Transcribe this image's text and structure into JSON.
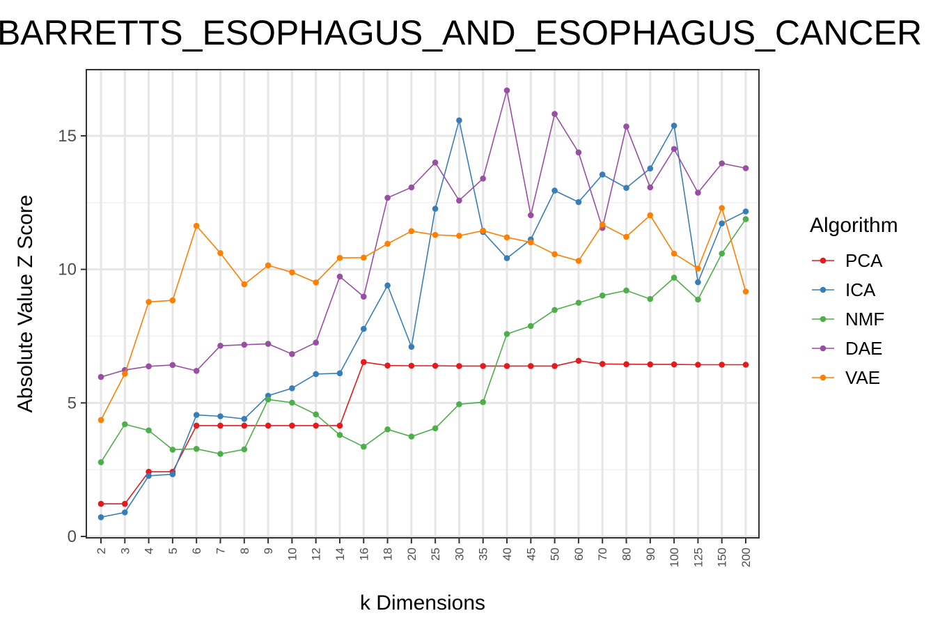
{
  "chart_data": {
    "type": "line",
    "title": "BARRETTS_ESOPHAGUS_AND_ESOPHAGUS_CANCER",
    "xlabel": "k Dimensions",
    "ylabel": "Absolute Value Z Score",
    "categories": [
      "2",
      "3",
      "4",
      "5",
      "6",
      "7",
      "8",
      "9",
      "10",
      "12",
      "14",
      "16",
      "18",
      "20",
      "25",
      "30",
      "35",
      "40",
      "45",
      "50",
      "60",
      "70",
      "80",
      "90",
      "100",
      "125",
      "150",
      "200"
    ],
    "ylim": [
      0,
      17.5
    ],
    "yticks": [
      0,
      5,
      10,
      15
    ],
    "ytick_labels": [
      "0",
      "5",
      "10",
      "15"
    ],
    "grid": true,
    "legend_title": "Algorithm",
    "legend_position": "right",
    "series": [
      {
        "name": "PCA",
        "color": "#E41A1C",
        "values": [
          1.22,
          1.22,
          2.42,
          2.42,
          4.15,
          4.15,
          4.15,
          4.15,
          4.15,
          4.15,
          4.15,
          6.53,
          6.4,
          6.39,
          6.39,
          6.38,
          6.38,
          6.38,
          6.38,
          6.38,
          6.58,
          6.46,
          6.45,
          6.44,
          6.44,
          6.43,
          6.43,
          6.43
        ]
      },
      {
        "name": "ICA",
        "color": "#377EB8",
        "values": [
          0.72,
          0.9,
          2.27,
          2.33,
          4.55,
          4.5,
          4.4,
          5.27,
          5.55,
          6.08,
          6.11,
          7.77,
          9.4,
          7.1,
          12.27,
          15.58,
          11.4,
          10.42,
          11.12,
          12.95,
          12.52,
          13.55,
          13.05,
          13.78,
          15.38,
          9.52,
          11.72,
          12.17
        ]
      },
      {
        "name": "NMF",
        "color": "#4DAF4A",
        "values": [
          2.78,
          4.2,
          3.97,
          3.25,
          3.28,
          3.09,
          3.26,
          5.13,
          5.01,
          4.57,
          3.8,
          3.36,
          4.01,
          3.74,
          4.05,
          4.95,
          5.03,
          7.58,
          7.88,
          8.48,
          8.75,
          9.02,
          9.21,
          8.89,
          9.69,
          8.87,
          10.59,
          11.88
        ]
      },
      {
        "name": "DAE",
        "color": "#984EA3",
        "values": [
          5.97,
          6.23,
          6.37,
          6.42,
          6.2,
          7.14,
          7.18,
          7.21,
          6.83,
          7.26,
          9.73,
          8.98,
          12.68,
          13.07,
          14.0,
          12.58,
          13.4,
          16.7,
          12.03,
          15.82,
          14.38,
          11.55,
          15.35,
          13.07,
          14.51,
          12.87,
          13.97,
          13.79
        ]
      },
      {
        "name": "VAE",
        "color": "#FF7F00",
        "values": [
          4.36,
          6.09,
          8.78,
          8.84,
          11.63,
          10.61,
          9.44,
          10.15,
          9.89,
          9.51,
          10.43,
          10.44,
          10.96,
          11.43,
          11.29,
          11.26,
          11.45,
          11.2,
          11.01,
          10.57,
          10.32,
          11.68,
          11.22,
          12.03,
          10.59,
          10.03,
          12.3,
          9.17
        ]
      }
    ]
  }
}
